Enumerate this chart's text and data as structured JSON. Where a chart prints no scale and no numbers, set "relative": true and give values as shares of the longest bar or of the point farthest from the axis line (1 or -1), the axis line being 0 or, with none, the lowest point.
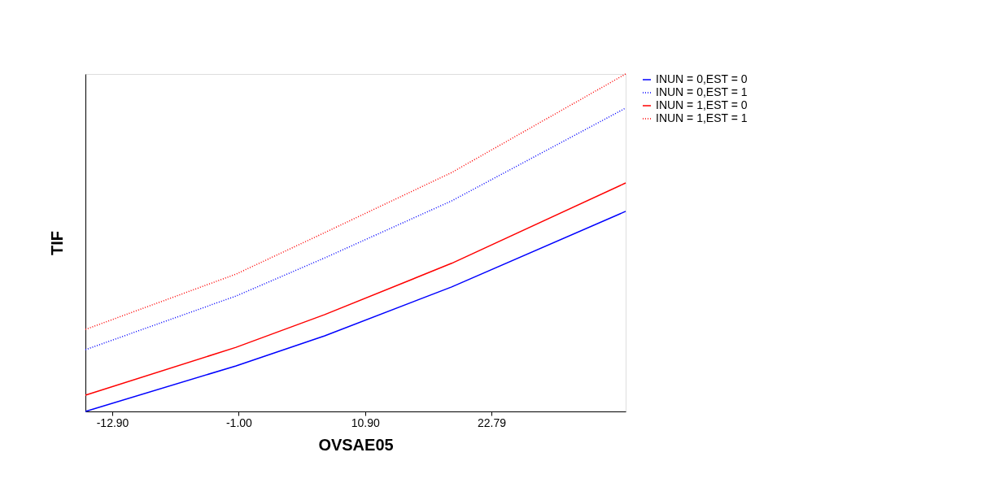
{
  "chart_data": {
    "type": "line",
    "xlabel": "OVSAE05",
    "ylabel": "TIF",
    "relative": true,
    "x": [
      -15.43,
      -1.25,
      7.1,
      19.05,
      35.43
    ],
    "xlim": [
      -15.43,
      35.43
    ],
    "xticks": [
      {
        "value": -12.9,
        "label": "-12.90"
      },
      {
        "value": -1.0,
        "label": "-1.00"
      },
      {
        "value": 10.9,
        "label": "10.90"
      },
      22.79
    ],
    "series": [
      {
        "name": "INUN = 0,EST = 0",
        "color": "#0000ff",
        "line_style": "solid",
        "values": [
          0,
          0.135,
          0.224,
          0.369,
          0.593
        ]
      },
      {
        "name": "INUN = 0,EST = 1",
        "color": "#0000ff",
        "line_style": "dotted",
        "values": [
          0.183,
          0.342,
          0.455,
          0.624,
          0.899
        ]
      },
      {
        "name": "INUN = 1,EST = 0",
        "color": "#ff0000",
        "line_style": "solid",
        "values": [
          0.048,
          0.19,
          0.287,
          0.439,
          0.677
        ]
      },
      {
        "name": "INUN = 1,EST = 1",
        "color": "#ff0000",
        "line_style": "dotted",
        "values": [
          0.243,
          0.407,
          0.53,
          0.708,
          1.0
        ]
      }
    ],
    "legend": "right",
    "grid": false,
    "marker": "none"
  }
}
